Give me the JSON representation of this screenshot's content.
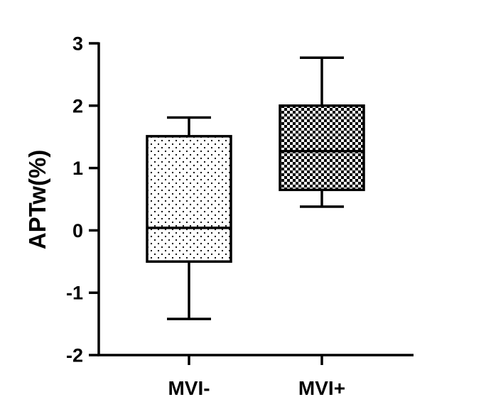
{
  "chart_data": {
    "type": "box",
    "title": "",
    "xlabel": "",
    "ylabel": "APTw(%)",
    "ylim": [
      -2,
      3
    ],
    "yticks": [
      -2,
      -1,
      0,
      1,
      2,
      3
    ],
    "ytick_labels": [
      "-2",
      "-1",
      "0",
      "1",
      "2",
      "3"
    ],
    "grid": false,
    "legend": "none",
    "categories": [
      "MVI-",
      "MVI+"
    ],
    "boxes": [
      {
        "category": "MVI-",
        "min": -1.42,
        "q1": -0.5,
        "median": 0.04,
        "q3": 1.51,
        "max": 1.81,
        "pattern": "dots"
      },
      {
        "category": "MVI+",
        "min": 0.38,
        "q1": 0.65,
        "median": 1.27,
        "q3": 2.0,
        "max": 2.77,
        "pattern": "checker"
      }
    ],
    "colors": {
      "axis": "#000000",
      "box_fill": "#ffffff",
      "pattern": "#000000"
    }
  }
}
